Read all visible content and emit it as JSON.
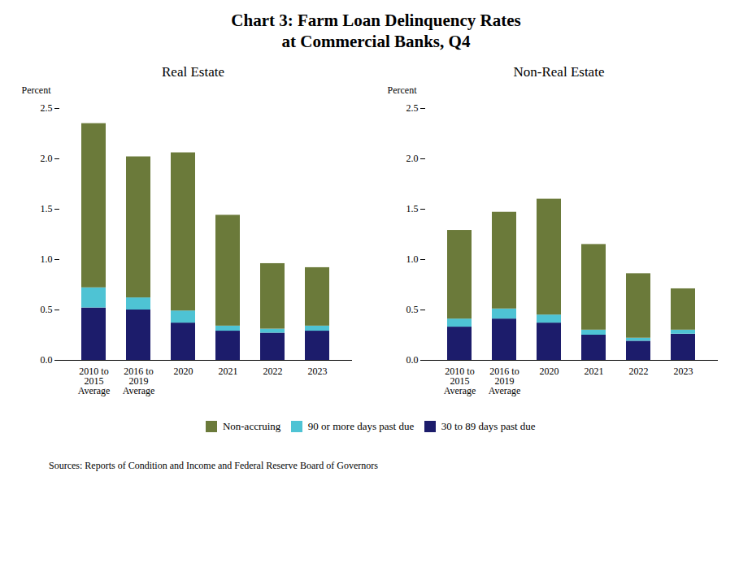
{
  "title": "Chart 3: Farm Loan Delinquency Rates",
  "subtitle": "at Commercial Banks, Q4",
  "caption": "Sources: Reports of Condition and Income and Federal Reserve Board of Governors",
  "chart_data": [
    {
      "type": "bar",
      "stacked": true,
      "title": "Real Estate",
      "categories": [
        "2010 to\n2015\nAverage",
        "2016 to\n2019\nAverage",
        "2020",
        "2021",
        "2022",
        "2023"
      ],
      "series": [
        {
          "name": "30 to 89 days past due",
          "color": "#1c1c6b",
          "values": [
            0.52,
            0.5,
            0.37,
            0.29,
            0.27,
            0.29
          ]
        },
        {
          "name": "90 or more days past due",
          "color": "#4ec3d4",
          "values": [
            0.2,
            0.12,
            0.12,
            0.05,
            0.04,
            0.05
          ]
        },
        {
          "name": "Non-accruing",
          "color": "#6b7a3a",
          "values": [
            1.63,
            1.4,
            1.57,
            1.1,
            0.65,
            0.58
          ]
        }
      ],
      "ylabel": "Percent",
      "ylim": [
        0,
        2.5
      ],
      "yticks": [
        {
          "value": 0,
          "label": "0.0"
        },
        0.5,
        {
          "value": 1,
          "label": "1.0"
        },
        1.5,
        {
          "value": 2,
          "label": "2.0"
        },
        2.5
      ],
      "grid": false,
      "legend": "bottom"
    },
    {
      "type": "bar",
      "stacked": true,
      "title": "Non-Real Estate",
      "categories": [
        "2010 to\n2015\nAverage",
        "2016 to\n2019\nAverage",
        "2020",
        "2021",
        "2022",
        "2023"
      ],
      "series": [
        {
          "name": "30 to 89 days past due",
          "color": "#1c1c6b",
          "values": [
            0.33,
            0.41,
            0.37,
            0.25,
            0.19,
            0.26
          ]
        },
        {
          "name": "90 or more days past due",
          "color": "#4ec3d4",
          "values": [
            0.08,
            0.1,
            0.08,
            0.05,
            0.03,
            0.04
          ]
        },
        {
          "name": "Non-accruing",
          "color": "#6b7a3a",
          "values": [
            0.88,
            0.96,
            1.15,
            0.85,
            0.64,
            0.41
          ]
        }
      ],
      "ylabel": "Percent",
      "ylim": [
        0,
        2.5
      ],
      "yticks": [
        {
          "value": 0,
          "label": "0.0"
        },
        0.5,
        {
          "value": 1,
          "label": "1.0"
        },
        1.5,
        {
          "value": 2,
          "label": "2.0"
        },
        2.5
      ],
      "grid": false,
      "legend": "bottom"
    }
  ]
}
